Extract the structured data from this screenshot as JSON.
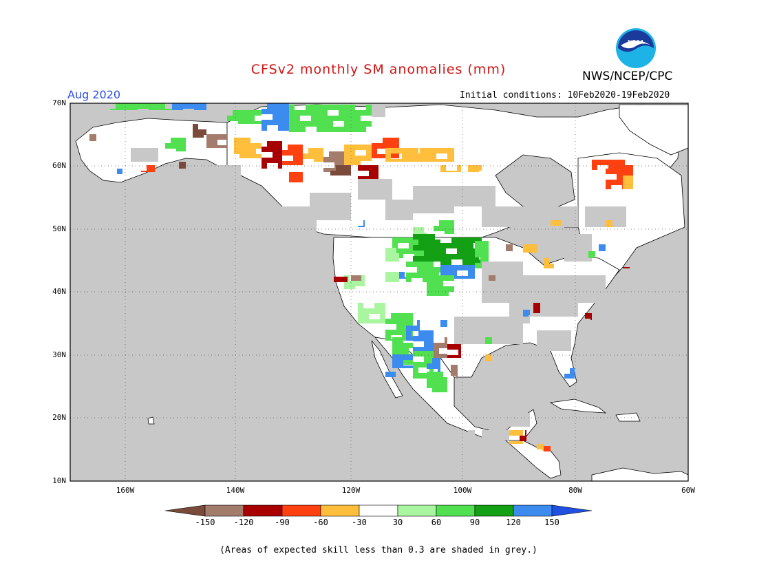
{
  "header": {
    "title": "CFSv2 monthly SM anomalies (mm)",
    "organization": "NWS/NCEP/CPC",
    "logo_text": "NOAA",
    "period": "Aug 2020",
    "initial_conditions": "Initial conditions: 10Feb2020-19Feb2020"
  },
  "map": {
    "projection": "lat-lon",
    "lon_range": [
      -172,
      -60
    ],
    "lat_range": [
      10,
      70
    ],
    "lat_labels": [
      "70N",
      "60N",
      "50N",
      "40N",
      "30N",
      "20N",
      "10N"
    ],
    "lon_labels": [
      "160W",
      "140W",
      "120W",
      "100W",
      "80W",
      "60W"
    ],
    "ocean_color": "#c8c8c8",
    "land_color": "#ffffff"
  },
  "colorbar": {
    "labels": [
      "-150",
      "-120",
      "-90",
      "-60",
      "-30",
      "30",
      "60",
      "90",
      "120",
      "150"
    ],
    "colors": [
      "#7a4a3a",
      "#a47c6c",
      "#a80000",
      "#ff4010",
      "#ffbe3c",
      "#ffffff",
      "#aaf5a0",
      "#50e050",
      "#14a014",
      "#3c8cf0",
      "#2050e0"
    ]
  },
  "footnote": "(Areas of expected skill less than 0.3 are shaded in grey.)"
}
